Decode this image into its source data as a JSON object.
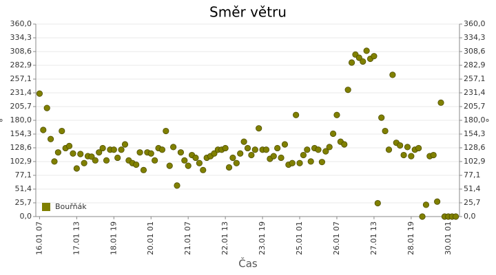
{
  "chart_data": {
    "type": "scatter",
    "title": "Směr větru",
    "x_label": "Čas",
    "y_label": "°",
    "y2_label": "°",
    "legend_position": "lower left",
    "grid": true,
    "series": [
      {
        "name": "Bouřňák",
        "color": "#808000",
        "x": [
          "16.01 07",
          "16.01 10",
          "16.01 13",
          "16.01 16",
          "16.01 19",
          "16.01 22",
          "17.01 01",
          "17.01 04",
          "17.01 07",
          "17.01 10",
          "17.01 13",
          "17.01 16",
          "17.01 19",
          "17.01 22",
          "18.01 01",
          "18.01 04",
          "18.01 07",
          "18.01 10",
          "18.01 13",
          "18.01 16",
          "18.01 19",
          "18.01 22",
          "19.01 01",
          "19.01 04",
          "19.01 07",
          "19.01 10",
          "19.01 13",
          "19.01 16",
          "19.01 19",
          "19.01 22",
          "20.01 01",
          "20.01 04",
          "20.01 07",
          "20.01 10",
          "20.01 13",
          "20.01 16",
          "20.01 19",
          "20.01 22",
          "21.01 01",
          "21.01 04",
          "21.01 07",
          "21.01 10",
          "21.01 13",
          "21.01 16",
          "21.01 19",
          "21.01 22",
          "22.01 01",
          "22.01 04",
          "22.01 07",
          "22.01 10",
          "22.01 13",
          "22.01 16",
          "22.01 19",
          "22.01 22",
          "23.01 01",
          "23.01 04",
          "23.01 07",
          "23.01 10",
          "23.01 13",
          "23.01 16",
          "23.01 19",
          "23.01 22",
          "24.01 01",
          "24.01 04",
          "24.01 07",
          "24.01 10",
          "24.01 13",
          "24.01 16",
          "24.01 19",
          "24.01 22",
          "25.01 01",
          "25.01 04",
          "25.01 07",
          "25.01 10",
          "25.01 13",
          "25.01 16",
          "25.01 19",
          "25.01 22",
          "26.01 01",
          "26.01 04",
          "26.01 07",
          "26.01 10",
          "26.01 13",
          "26.01 16",
          "26.01 19",
          "26.01 22",
          "27.01 01",
          "27.01 04",
          "27.01 07",
          "27.01 10",
          "27.01 13",
          "27.01 16",
          "27.01 19",
          "27.01 22",
          "28.01 01",
          "28.01 04",
          "28.01 07",
          "28.01 10",
          "28.01 13",
          "28.01 16",
          "28.01 19",
          "28.01 22",
          "29.01 01",
          "29.01 04",
          "29.01 07",
          "29.01 10",
          "29.01 13",
          "29.01 16",
          "29.01 19",
          "29.01 22",
          "30.01 01",
          "30.01 04",
          "30.01 07"
        ],
        "values": [
          230,
          162,
          203,
          145,
          103,
          120,
          160,
          128,
          132,
          118,
          90,
          117,
          100,
          113,
          112,
          105,
          120,
          128,
          105,
          125,
          125,
          110,
          125,
          135,
          105,
          100,
          97,
          120,
          87,
          120,
          118,
          105,
          128,
          125,
          160,
          95,
          130,
          58,
          120,
          105,
          95,
          115,
          110,
          100,
          87,
          110,
          113,
          118,
          125,
          125,
          128,
          92,
          110,
          100,
          118,
          140,
          128,
          115,
          125,
          165,
          125,
          125,
          108,
          113,
          128,
          110,
          135,
          97,
          100,
          190,
          100,
          115,
          125,
          103,
          128,
          125,
          102,
          122,
          130,
          155,
          190,
          140,
          135,
          237,
          288,
          303,
          297,
          290,
          310,
          295,
          300,
          25,
          185,
          160,
          125,
          265,
          138,
          133,
          115,
          130,
          113,
          125,
          128,
          0,
          22,
          113,
          115,
          28,
          213,
          0,
          0,
          0,
          0
        ]
      }
    ],
    "xlim": [
      "16.01 04",
      "30.01 10"
    ],
    "xticks": [
      "16.01 07",
      "17.01 13",
      "18.01 19",
      "20.01 01",
      "21.01 07",
      "22.01 13",
      "23.01 19",
      "25.01 01",
      "26.01 07",
      "27.01 13",
      "28.01 19",
      "30.01 01"
    ],
    "ylim": [
      0,
      360
    ],
    "yticks": [
      {
        "value": 0,
        "label": "0,0"
      },
      {
        "value": 25.7,
        "label": "25,7"
      },
      {
        "value": 51.4,
        "label": "51,4"
      },
      {
        "value": 77.1,
        "label": "77,1"
      },
      {
        "value": 102.9,
        "label": "102,9"
      },
      {
        "value": 128.6,
        "label": "128,6"
      },
      {
        "value": 154.3,
        "label": "154,3"
      },
      {
        "value": 180,
        "label": "180,0"
      },
      {
        "value": 205.7,
        "label": "205,7"
      },
      {
        "value": 231.4,
        "label": "231,4"
      },
      {
        "value": 257.1,
        "label": "257,1"
      },
      {
        "value": 282.9,
        "label": "282,9"
      },
      {
        "value": 308.6,
        "label": "308,6"
      },
      {
        "value": 334.3,
        "label": "334,3"
      },
      {
        "value": 360,
        "label": "360,0"
      }
    ]
  }
}
